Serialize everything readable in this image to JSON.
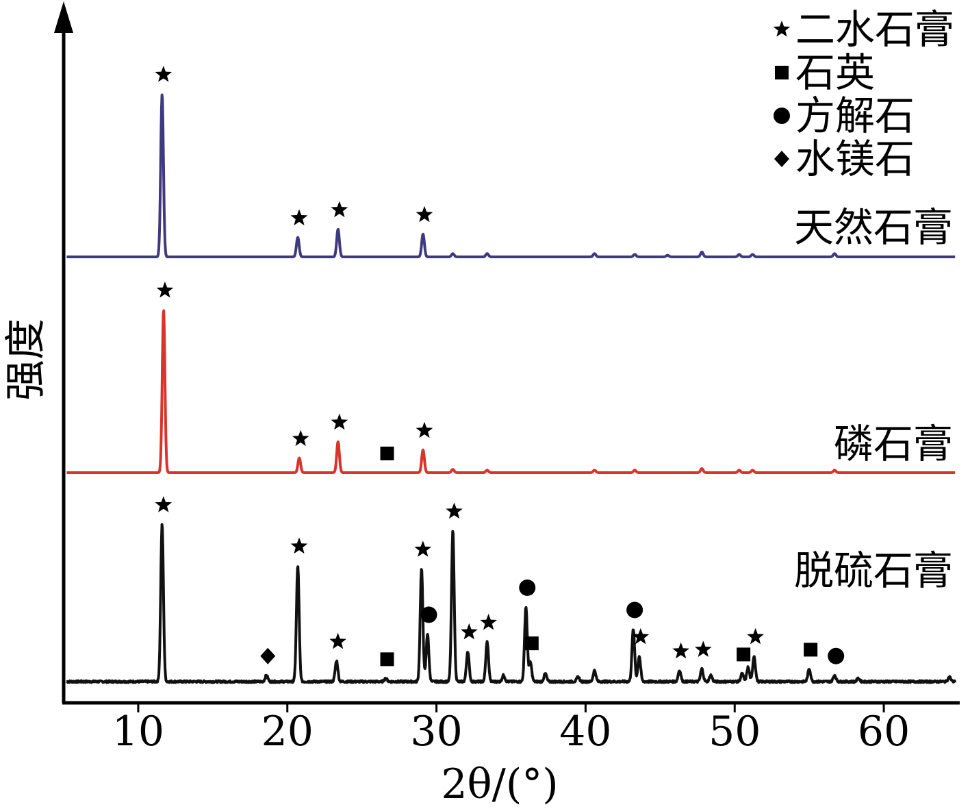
{
  "chart_data": {
    "type": "line",
    "title": "",
    "xlabel": "2θ/(°)",
    "ylabel": "强度",
    "xlim": [
      5,
      65
    ],
    "xticks": [
      10,
      20,
      30,
      40,
      50,
      60
    ],
    "y_ticks_shown": false,
    "grid": false,
    "legend_position": "top-right",
    "legend": [
      {
        "marker": "star",
        "label": "二水石膏"
      },
      {
        "marker": "square",
        "label": "石英"
      },
      {
        "marker": "circle",
        "label": "方解石"
      },
      {
        "marker": "diamond",
        "label": "水镁石"
      }
    ],
    "series": [
      {
        "name": "天然石膏",
        "color": "#3f3a7e",
        "noise": 0.0,
        "peaks": [
          {
            "x": 11.6,
            "y": 1.0,
            "marker": "star"
          },
          {
            "x": 20.7,
            "y": 0.12,
            "marker": "star"
          },
          {
            "x": 23.4,
            "y": 0.17,
            "marker": "star"
          },
          {
            "x": 29.1,
            "y": 0.14,
            "marker": "star"
          },
          {
            "x": 31.1,
            "y": 0.02
          },
          {
            "x": 33.4,
            "y": 0.02
          },
          {
            "x": 40.6,
            "y": 0.02
          },
          {
            "x": 43.3,
            "y": 0.015
          },
          {
            "x": 45.5,
            "y": 0.01
          },
          {
            "x": 47.8,
            "y": 0.03
          },
          {
            "x": 50.3,
            "y": 0.015
          },
          {
            "x": 51.2,
            "y": 0.015
          },
          {
            "x": 56.7,
            "y": 0.02
          }
        ]
      },
      {
        "name": "磷石膏",
        "color": "#d9342b",
        "noise": 0.0,
        "peaks": [
          {
            "x": 11.7,
            "y": 1.0,
            "marker": "star"
          },
          {
            "x": 20.8,
            "y": 0.09,
            "marker": "star"
          },
          {
            "x": 23.4,
            "y": 0.19,
            "marker": "star"
          },
          {
            "x": 26.6,
            "y": 0.0,
            "marker": "square"
          },
          {
            "x": 29.1,
            "y": 0.14,
            "marker": "star"
          },
          {
            "x": 31.1,
            "y": 0.02
          },
          {
            "x": 33.4,
            "y": 0.015
          },
          {
            "x": 40.6,
            "y": 0.015
          },
          {
            "x": 43.3,
            "y": 0.015
          },
          {
            "x": 47.8,
            "y": 0.025
          },
          {
            "x": 50.3,
            "y": 0.015
          },
          {
            "x": 51.2,
            "y": 0.015
          },
          {
            "x": 56.7,
            "y": 0.015
          }
        ]
      },
      {
        "name": "脱硫石膏",
        "color": "#111111",
        "noise": 0.012,
        "peaks": [
          {
            "x": 11.6,
            "y": 0.99,
            "marker": "star"
          },
          {
            "x": 18.6,
            "y": 0.04,
            "marker": "diamond"
          },
          {
            "x": 20.7,
            "y": 0.73,
            "marker": "star"
          },
          {
            "x": 23.3,
            "y": 0.13,
            "marker": "star"
          },
          {
            "x": 26.6,
            "y": 0.02,
            "marker": "square"
          },
          {
            "x": 29.0,
            "y": 0.71,
            "marker": "star"
          },
          {
            "x": 29.4,
            "y": 0.3,
            "marker": "circle"
          },
          {
            "x": 31.1,
            "y": 0.95,
            "marker": "star"
          },
          {
            "x": 32.1,
            "y": 0.19,
            "marker": "star"
          },
          {
            "x": 33.4,
            "y": 0.25,
            "marker": "star"
          },
          {
            "x": 34.5,
            "y": 0.04
          },
          {
            "x": 36.0,
            "y": 0.47,
            "marker": "circle"
          },
          {
            "x": 36.3,
            "y": 0.12,
            "marker": "square"
          },
          {
            "x": 37.3,
            "y": 0.05
          },
          {
            "x": 39.5,
            "y": 0.03
          },
          {
            "x": 40.6,
            "y": 0.07
          },
          {
            "x": 43.2,
            "y": 0.33,
            "marker": "circle"
          },
          {
            "x": 43.6,
            "y": 0.16,
            "marker": "star"
          },
          {
            "x": 46.3,
            "y": 0.07,
            "marker": "star"
          },
          {
            "x": 47.8,
            "y": 0.08,
            "marker": "star"
          },
          {
            "x": 48.4,
            "y": 0.04
          },
          {
            "x": 50.5,
            "y": 0.05,
            "marker": "square"
          },
          {
            "x": 50.9,
            "y": 0.09
          },
          {
            "x": 51.3,
            "y": 0.16,
            "marker": "star"
          },
          {
            "x": 55.0,
            "y": 0.08,
            "marker": "square"
          },
          {
            "x": 56.7,
            "y": 0.04,
            "marker": "circle"
          },
          {
            "x": 58.3,
            "y": 0.02
          },
          {
            "x": 64.4,
            "y": 0.03
          }
        ]
      }
    ]
  }
}
